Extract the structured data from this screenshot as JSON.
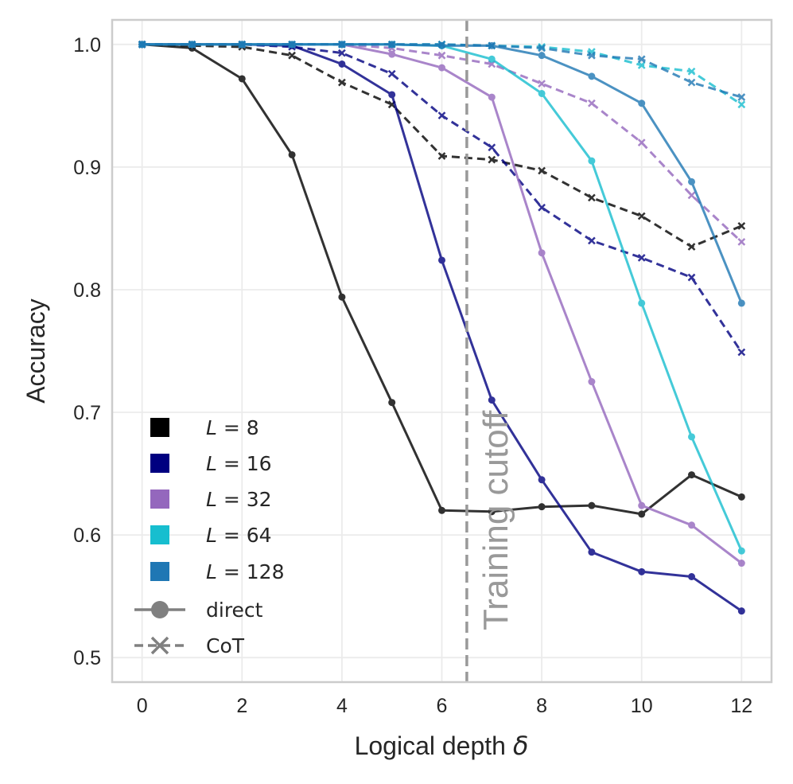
{
  "chart_data": {
    "type": "line",
    "title": "",
    "xlabel": "Logical depth",
    "xlabel_symbol": "δ",
    "ylabel": "Accuracy",
    "xlim": [
      -0.6,
      12.6
    ],
    "ylim": [
      0.48,
      1.02
    ],
    "xticks": [
      0,
      2,
      4,
      6,
      8,
      10,
      12
    ],
    "xtick_labels": [
      "0",
      "2",
      "4",
      "6",
      "8",
      "10",
      "12"
    ],
    "yticks": [
      0.5,
      0.6,
      0.7,
      0.8,
      0.9,
      1.0
    ],
    "ytick_labels": [
      "0.5",
      "0.6",
      "0.7",
      "0.8",
      "0.9",
      "1.0"
    ],
    "grid": true,
    "legend_position": "lower-left",
    "x": [
      0,
      1,
      2,
      3,
      4,
      5,
      6,
      7,
      8,
      9,
      10,
      11,
      12
    ],
    "cutoff": {
      "x": 6.5,
      "label": "Training cutoff",
      "color": "#999999"
    },
    "series": [
      {
        "L": "8",
        "color": "#000000",
        "method": "direct",
        "values": [
          1.0,
          0.997,
          0.972,
          0.91,
          0.794,
          0.708,
          0.62,
          0.619,
          0.623,
          0.624,
          0.617,
          0.649,
          0.631
        ]
      },
      {
        "L": "8",
        "color": "#000000",
        "method": "CoT",
        "values": [
          1.0,
          0.999,
          0.998,
          0.991,
          0.969,
          0.951,
          0.909,
          0.906,
          0.897,
          0.875,
          0.86,
          0.835,
          0.852
        ]
      },
      {
        "L": "16",
        "color": "#000080",
        "method": "direct",
        "values": [
          1.0,
          1.0,
          1.0,
          0.999,
          0.984,
          0.959,
          0.824,
          0.71,
          0.645,
          0.586,
          0.57,
          0.566,
          0.538
        ]
      },
      {
        "L": "16",
        "color": "#000080",
        "method": "CoT",
        "values": [
          1.0,
          1.0,
          1.0,
          0.998,
          0.993,
          0.976,
          0.942,
          0.916,
          0.867,
          0.84,
          0.826,
          0.81,
          0.749
        ]
      },
      {
        "L": "32",
        "color": "#9467bd",
        "method": "direct",
        "values": [
          1.0,
          1.0,
          1.0,
          1.0,
          1.0,
          0.992,
          0.981,
          0.957,
          0.83,
          0.725,
          0.624,
          0.608,
          0.577
        ]
      },
      {
        "L": "32",
        "color": "#9467bd",
        "method": "CoT",
        "values": [
          1.0,
          1.0,
          1.0,
          1.0,
          1.0,
          0.997,
          0.991,
          0.984,
          0.968,
          0.952,
          0.92,
          0.877,
          0.839
        ]
      },
      {
        "L": "64",
        "color": "#17becf",
        "method": "direct",
        "values": [
          1.0,
          1.0,
          1.0,
          1.0,
          1.0,
          1.0,
          0.999,
          0.988,
          0.96,
          0.905,
          0.789,
          0.68,
          0.587
        ]
      },
      {
        "L": "64",
        "color": "#17becf",
        "method": "CoT",
        "values": [
          1.0,
          1.0,
          1.0,
          1.0,
          1.0,
          1.0,
          1.0,
          0.999,
          0.998,
          0.994,
          0.983,
          0.978,
          0.951
        ]
      },
      {
        "L": "128",
        "color": "#1f77b4",
        "method": "direct",
        "values": [
          1.0,
          1.0,
          1.0,
          1.0,
          1.0,
          1.0,
          0.999,
          0.999,
          0.991,
          0.974,
          0.952,
          0.888,
          0.789
        ]
      },
      {
        "L": "128",
        "color": "#1f77b4",
        "method": "CoT",
        "values": [
          1.0,
          1.0,
          1.0,
          1.0,
          1.0,
          1.0,
          1.0,
          0.999,
          0.997,
          0.991,
          0.988,
          0.969,
          0.957
        ]
      }
    ],
    "legend": {
      "entries": [
        {
          "kind": "color",
          "prefix": "L",
          "label": "8",
          "color": "#000000"
        },
        {
          "kind": "color",
          "prefix": "L",
          "label": "16",
          "color": "#000080"
        },
        {
          "kind": "color",
          "prefix": "L",
          "label": "32",
          "color": "#9467bd"
        },
        {
          "kind": "color",
          "prefix": "L",
          "label": "64",
          "color": "#17becf"
        },
        {
          "kind": "color",
          "prefix": "L",
          "label": "128",
          "color": "#1f77b4"
        },
        {
          "kind": "style",
          "label": "direct",
          "line": "solid",
          "marker": "circle",
          "color": "#808080"
        },
        {
          "kind": "style",
          "label": "CoT",
          "line": "dashed",
          "marker": "x",
          "color": "#808080"
        }
      ]
    }
  }
}
